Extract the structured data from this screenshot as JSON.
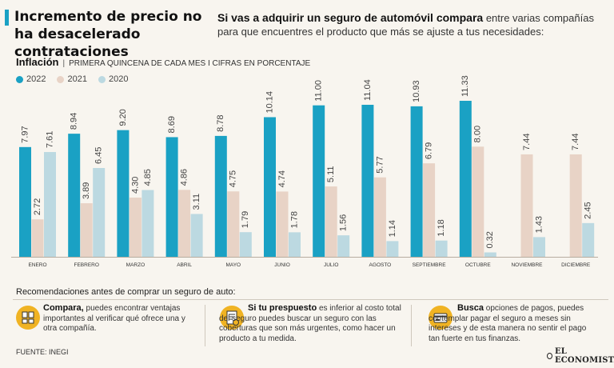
{
  "headline": "Incremento de precio no ha desacelerado contrataciones",
  "intro": {
    "bold": "Si vas a adquirir un seguro de automóvil compara",
    "rest": " entre varias compañías para que encuentres el producto que más se ajuste a tus necesidades:"
  },
  "colors": {
    "s2022": "#1aa1c4",
    "s2021": "#e8d3c6",
    "s2020": "#bcd9e1",
    "accent": "#1aa1c4",
    "icon": "#f0b323"
  },
  "chart_data": {
    "type": "bar",
    "title": "Inflación",
    "subtitle": "PRIMERA QUINCENA DE CADA MES I CIFRAS EN PORCENTAJE",
    "categories": [
      "ENERO",
      "FEBRERO",
      "MARZO",
      "ABRIL",
      "MAYO",
      "JUNIO",
      "JULIO",
      "AGOSTO",
      "SEPTIEMBRE",
      "OCTUBRE",
      "NOVIEMBRE",
      "DICIEMBRE"
    ],
    "series": [
      {
        "name": "2022",
        "values": [
          7.97,
          8.94,
          9.2,
          8.69,
          8.78,
          10.14,
          11.0,
          11.04,
          10.93,
          11.33,
          null,
          null
        ],
        "labels": [
          "7.97",
          "8.94",
          "9.20",
          "8.69",
          "8.78",
          "10.14",
          "11.00",
          "11.04",
          "10.93",
          "11.33",
          "",
          ""
        ]
      },
      {
        "name": "2021",
        "values": [
          2.72,
          3.89,
          4.3,
          4.86,
          4.75,
          4.74,
          5.11,
          5.77,
          6.79,
          8.0,
          7.44,
          7.44
        ],
        "labels": [
          "2.72",
          "3.89",
          "4.30",
          "4.86",
          "4.75",
          "4.74",
          "5.11",
          "5.77",
          "6.79",
          "8.00",
          "7.44",
          "7.44"
        ]
      },
      {
        "name": "2020",
        "values": [
          7.61,
          6.45,
          4.85,
          3.11,
          1.79,
          1.78,
          1.56,
          1.14,
          1.18,
          0.32,
          1.43,
          2.45
        ],
        "labels": [
          "7.61",
          "6.45",
          "4.85",
          "3.11",
          "1.79",
          "1.78",
          "1.56",
          "1.14",
          "1.18",
          "0.32",
          "1.43",
          "2.45"
        ]
      }
    ],
    "ylim": [
      0,
      11.33
    ],
    "legend": "top-left",
    "grid": false
  },
  "recommendations": {
    "title": "Recomendaciones antes de comprar un seguro de auto:",
    "tips": [
      {
        "bold": "Compara,",
        "text": " puedes encontrar ventajas importantes al verificar qué ofrece una y otra compañía.",
        "icon": "compare-icon"
      },
      {
        "bold": "Si tu prespuesto",
        "text": " es inferior al costo total del seguro puedes buscar un seguro con las coberturas que son más urgentes, como hacer un producto a tu medida.",
        "icon": "budget-icon"
      },
      {
        "bold": "Busca",
        "text": " opciones de pagos, puedes contemplar pagar el seguro a meses sin intereses y de esta manera no sentir el pago tan fuerte en tus finanzas.",
        "icon": "card-icon"
      }
    ]
  },
  "source": "FUENTE: INEGI",
  "brand": "EL ECONOMISTA"
}
